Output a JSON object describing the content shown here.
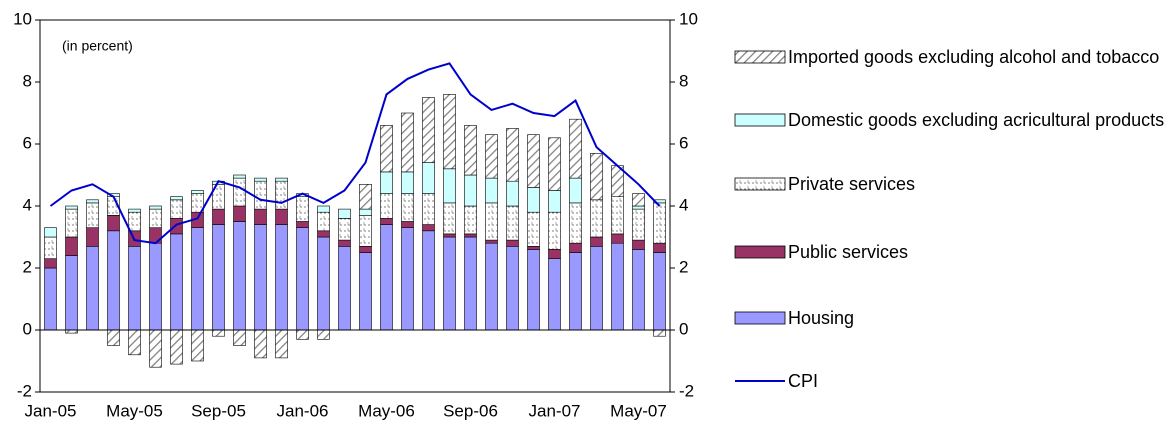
{
  "chart_data": {
    "type": "bar",
    "stacked": true,
    "annotation": "(in percent)",
    "categories": [
      "Jan-05",
      null,
      null,
      null,
      "May-05",
      null,
      null,
      null,
      "Sep-05",
      null,
      null,
      null,
      "Jan-06",
      null,
      null,
      null,
      "May-06",
      null,
      null,
      null,
      "Sep-06",
      null,
      null,
      null,
      "Jan-07",
      null,
      null,
      null,
      "May-07",
      null
    ],
    "series": [
      {
        "name": "Housing",
        "color": "#9999ff",
        "pattern": "solid",
        "values": [
          2.0,
          2.4,
          2.7,
          3.2,
          2.7,
          2.8,
          3.1,
          3.3,
          3.4,
          3.5,
          3.4,
          3.4,
          3.3,
          3.0,
          2.7,
          2.5,
          3.4,
          3.3,
          3.2,
          3.0,
          3.0,
          2.8,
          2.7,
          2.6,
          2.3,
          2.5,
          2.7,
          2.8,
          2.6,
          2.5
        ]
      },
      {
        "name": "Public services",
        "color": "#993366",
        "pattern": "solid",
        "values": [
          0.3,
          0.6,
          0.6,
          0.5,
          0.5,
          0.5,
          0.5,
          0.5,
          0.5,
          0.5,
          0.5,
          0.5,
          0.2,
          0.2,
          0.2,
          0.2,
          0.2,
          0.2,
          0.2,
          0.1,
          0.1,
          0.1,
          0.2,
          0.1,
          0.3,
          0.3,
          0.3,
          0.3,
          0.3,
          0.3
        ]
      },
      {
        "name": "Private services",
        "color": "#808080",
        "pattern": "brick",
        "values": [
          0.7,
          0.9,
          0.8,
          0.6,
          0.6,
          0.6,
          0.6,
          0.6,
          0.8,
          0.9,
          0.9,
          0.9,
          0.8,
          0.6,
          0.7,
          1.0,
          0.8,
          0.9,
          1.0,
          1.0,
          0.9,
          1.2,
          1.1,
          1.1,
          1.2,
          1.3,
          1.2,
          1.2,
          1.0,
          1.3
        ]
      },
      {
        "name": "Domestic goods excluding acricultural products",
        "color": "#ccffff",
        "pattern": "solid",
        "values": [
          0.3,
          0.1,
          0.1,
          0.1,
          0.1,
          0.1,
          0.1,
          0.1,
          0.1,
          0.1,
          0.1,
          0.1,
          0.1,
          0.2,
          0.3,
          0.2,
          0.7,
          0.7,
          1.0,
          1.1,
          1.0,
          0.8,
          0.8,
          0.8,
          0.7,
          0.8,
          0.0,
          0.0,
          0.1,
          0.1
        ]
      },
      {
        "name": "Imported goods excluding alcohol and tobacco",
        "color": "#808080",
        "pattern": "hatch",
        "values": [
          0.0,
          -0.1,
          0.0,
          -0.5,
          -0.8,
          -1.2,
          -1.1,
          -1.0,
          -0.2,
          -0.5,
          -0.9,
          -0.9,
          -0.3,
          -0.3,
          0.0,
          0.8,
          1.5,
          1.9,
          2.1,
          2.4,
          1.6,
          1.4,
          1.7,
          1.7,
          1.7,
          1.9,
          1.5,
          1.0,
          0.4,
          -0.2
        ]
      },
      {
        "name": "CPI",
        "color": "#0000cc",
        "type": "line",
        "values": [
          4.0,
          4.5,
          4.7,
          4.3,
          2.9,
          2.8,
          3.4,
          3.6,
          4.8,
          4.6,
          4.2,
          4.1,
          4.4,
          4.1,
          4.5,
          5.4,
          7.6,
          8.1,
          8.4,
          8.6,
          7.6,
          7.1,
          7.3,
          7.0,
          6.9,
          7.4,
          5.9,
          5.3,
          4.7,
          4.0
        ]
      }
    ],
    "ylim": [
      -2,
      10
    ],
    "yticks": [
      -2,
      0,
      2,
      4,
      6,
      8,
      10
    ],
    "y2lim": [
      -2,
      10
    ],
    "y2ticks": [
      -2,
      0,
      2,
      4,
      6,
      8,
      10
    ],
    "legend": "right"
  }
}
